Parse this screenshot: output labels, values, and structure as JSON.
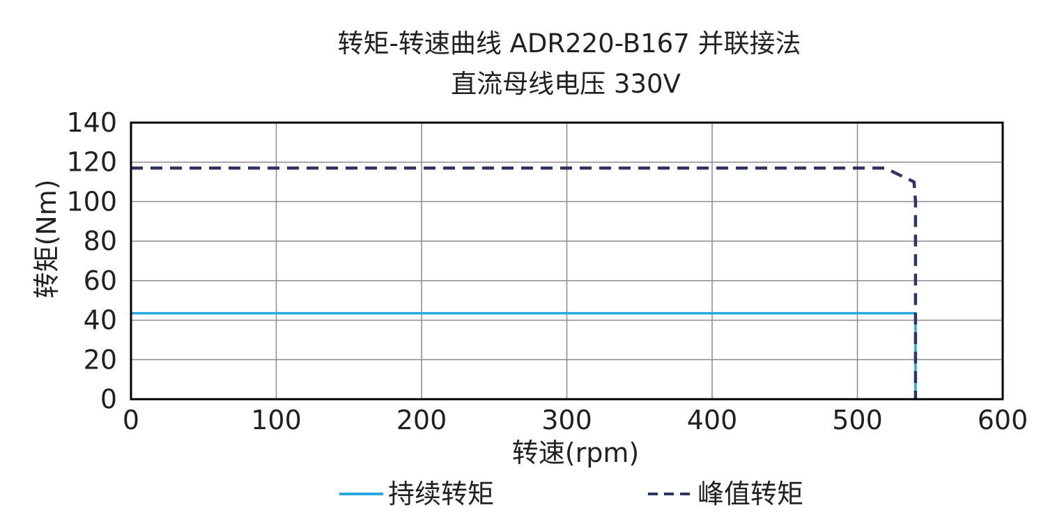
{
  "chart_data": {
    "type": "line",
    "title": "转矩-转速曲线 ADR220-B167 并联接法",
    "subtitle": "直流母线电压 330V",
    "xlabel": "转速(rpm)",
    "ylabel": "转矩(Nm)",
    "xlim": [
      0,
      600
    ],
    "ylim": [
      0,
      140
    ],
    "xticks": [
      0,
      100,
      200,
      300,
      400,
      500,
      600
    ],
    "yticks": [
      0,
      20,
      40,
      60,
      80,
      100,
      120,
      140
    ],
    "xtick_labels": [
      "0",
      "100",
      "200",
      "300",
      "400",
      "500",
      "600"
    ],
    "ytick_labels": [
      "0",
      "20",
      "40",
      "60",
      "80",
      "100",
      "120",
      "140"
    ],
    "grid": true,
    "legend_position": "bottom",
    "series": [
      {
        "name": "持续转矩",
        "style": "solid",
        "color": "#29a8df",
        "x": [
          0,
          540,
          540
        ],
        "y": [
          43.5,
          43.5,
          0
        ]
      },
      {
        "name": "峰值转矩",
        "style": "dashed",
        "color": "#2e3563",
        "x": [
          0,
          519,
          539,
          540,
          540
        ],
        "y": [
          117,
          117,
          110,
          100,
          0
        ]
      }
    ]
  }
}
